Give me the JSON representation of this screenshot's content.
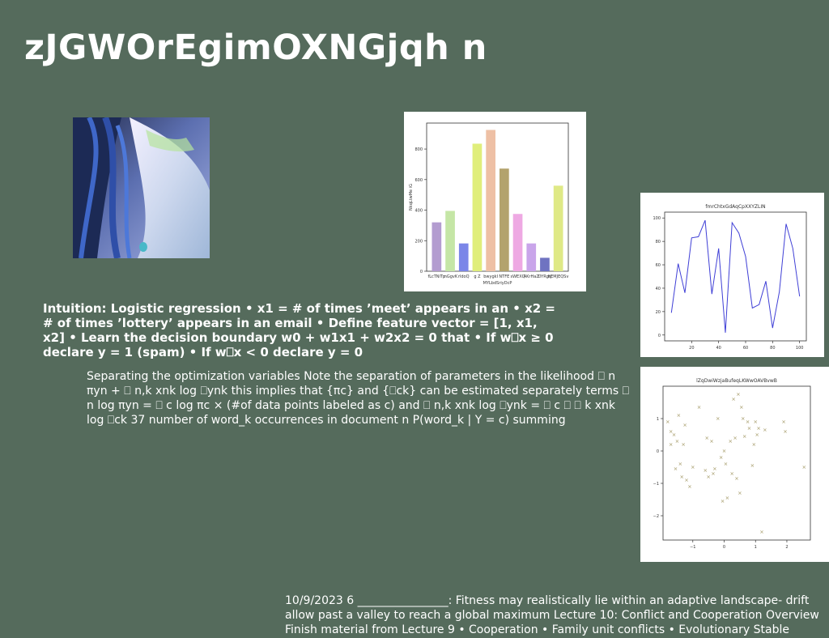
{
  "slide": {
    "title": "zJGWOrEgimOXNGjqh n",
    "intuition_text": "Intuition: Logistic regression • x1 = # of times ’meet’ appears in an • x2 = # of times ’lottery’ appears in an email • Define feature vector = [1, x1, x2] • Learn the decision boundary w0 + w1x1 + w2x2 = 0 that • If w⎕x ≥ 0 declare y = 1 (spam) • If w⎕x < 0 declare y = 0",
    "separation_text": "Separating the optimization variables Note the separation of parameters in the likelihood ⎕ n πyn + ⎕ n,k xnk log ⎕ynk this implies that {πc} and {⎕ck} can be estimated separately terms ⎕ n log πyn = ⎕ c log πc × (#of data points labeled as c) and ⎕ n,k xnk log ⎕ynk = ⎕ c ⎕ ⎕ k xnk log ⎕ck 37 number of word_k occurrences in document n P(word_k | Y = c) summing",
    "footer_text": "10/9/2023 6 ________________: Fitness may realistically lie within an adaptive landscape- drift allow past a valley to reach a global maximum Lecture 10: Conflict and Cooperation Overview Finish material from Lecture 9 • Cooperation • Family unit conflicts • Evolutionary Stable"
  },
  "chart_data": [
    {
      "type": "bar",
      "title": "",
      "xlabel": "MYLbdSriyDcP",
      "ylabel": "NkqLtwMe iG",
      "categories": [
        "fLcTNITp",
        "mGgvK",
        "rldoQ",
        "g Z",
        "bwygkI",
        "NTFE",
        "sWEXQ",
        "AKrHaZ",
        "DYRgtJ",
        "hEMJEQSv"
      ],
      "values": [
        320,
        395,
        182,
        835,
        925,
        672,
        375,
        182,
        88,
        560
      ],
      "colors": [
        "#b39cd0",
        "#c5e6a6",
        "#7b86e8",
        "#e0ee7b",
        "#eec0a5",
        "#b3a36d",
        "#eea9e3",
        "#c9a5ea",
        "#6f73c1",
        "#dfe986"
      ],
      "yticks": [
        0,
        200,
        400,
        600,
        800
      ],
      "ylim": [
        0,
        970
      ]
    },
    {
      "type": "line",
      "title": "fmrChtxGdAqCpXXYZLIN",
      "x": [
        5,
        10,
        15,
        20,
        25,
        30,
        35,
        40,
        45,
        50,
        55,
        60,
        65,
        70,
        75,
        80,
        85,
        90,
        95,
        100
      ],
      "y": [
        19,
        61,
        36,
        83,
        84,
        98,
        35,
        74,
        2,
        96,
        87,
        67,
        23,
        26,
        46,
        6,
        37,
        95,
        74,
        33
      ],
      "color": "#3f3fd6",
      "xticks": [
        20,
        40,
        60,
        80,
        100
      ],
      "yticks": [
        0,
        20,
        40,
        60,
        80,
        100
      ],
      "xlim": [
        0,
        105
      ],
      "ylim": [
        -5,
        105
      ]
    },
    {
      "type": "scatter",
      "title": "lZqDwiWzjaBufeqLKWwOAVBvwB",
      "marker": "x",
      "color": "#b8b088",
      "x": [
        -1.8,
        -1.7,
        -1.7,
        -1.6,
        -1.55,
        -1.5,
        -1.45,
        -1.4,
        -1.35,
        -1.3,
        -1.25,
        -1.2,
        -1.1,
        -1.0,
        -0.8,
        -0.6,
        -0.55,
        -0.5,
        -0.4,
        -0.35,
        -0.3,
        -0.2,
        -0.1,
        -0.05,
        0.0,
        0.05,
        0.1,
        0.2,
        0.25,
        0.3,
        0.35,
        0.4,
        0.45,
        0.5,
        0.55,
        0.6,
        0.65,
        0.75,
        0.8,
        0.9,
        0.95,
        1.0,
        1.05,
        1.1,
        1.2,
        1.3,
        1.9,
        1.95,
        2.55
      ],
      "y": [
        0.9,
        0.6,
        0.2,
        0.5,
        -0.55,
        0.3,
        1.1,
        -0.4,
        -0.8,
        0.2,
        0.8,
        -0.9,
        -1.1,
        -0.5,
        1.35,
        -0.6,
        0.4,
        -0.8,
        0.3,
        -0.7,
        -0.55,
        1.0,
        -0.2,
        -1.55,
        0.0,
        -0.4,
        -1.45,
        0.3,
        -0.7,
        1.6,
        0.4,
        -0.85,
        1.75,
        -1.3,
        1.35,
        1.0,
        0.45,
        0.9,
        0.7,
        -0.45,
        0.2,
        0.9,
        0.5,
        0.7,
        -2.5,
        0.65,
        0.9,
        0.6,
        -0.5
      ],
      "xticks": [
        -1,
        0,
        1,
        2
      ],
      "yticks": [
        -2,
        -1,
        0,
        1
      ],
      "xlim": [
        -1.95,
        2.75
      ],
      "ylim": [
        -2.75,
        2.0
      ]
    }
  ]
}
